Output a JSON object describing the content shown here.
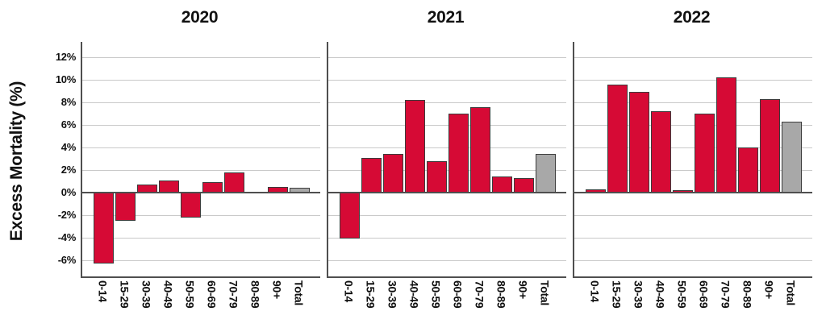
{
  "style": {
    "bar_red": "#d60a35",
    "bar_gray": "#a8a8a8",
    "bar_border": "#3c3c3c",
    "grid_color": "#c9c9c9",
    "axis_color": "#4f4f4f",
    "text_color": "#111111",
    "background": "#ffffff"
  },
  "chart_data": {
    "type": "bar",
    "title": "",
    "xlabel": "",
    "ylabel": "Excess Mortality (%)",
    "layout": "three side-by-side panels (small multiples by year), shared y-axis on left",
    "grid": true,
    "legend": false,
    "ylim": [
      -7.4,
      13.4
    ],
    "yticks": [
      12,
      10,
      8,
      6,
      4,
      2,
      0,
      -2,
      -4,
      -6
    ],
    "ytick_labels": [
      "12%",
      "10%",
      "8%",
      "6%",
      "4%",
      "2%",
      "0%",
      "-2%",
      "-4%",
      "-6%"
    ],
    "categories": [
      "0-14",
      "15-29",
      "30-39",
      "40-49",
      "50-59",
      "60-69",
      "70-79",
      "80-89",
      "90+",
      "Total"
    ],
    "total_category": "Total",
    "series": [
      {
        "name": "2020",
        "values": [
          -6.3,
          -2.5,
          0.7,
          1.1,
          -2.2,
          0.9,
          1.8,
          0.0,
          0.5,
          0.4
        ]
      },
      {
        "name": "2021",
        "values": [
          -4.1,
          3.1,
          3.4,
          8.2,
          2.8,
          7.0,
          7.6,
          1.4,
          1.3,
          3.4
        ]
      },
      {
        "name": "2022",
        "values": [
          0.3,
          9.6,
          8.9,
          7.2,
          0.2,
          7.0,
          10.2,
          4.0,
          8.3,
          6.3
        ]
      }
    ]
  }
}
